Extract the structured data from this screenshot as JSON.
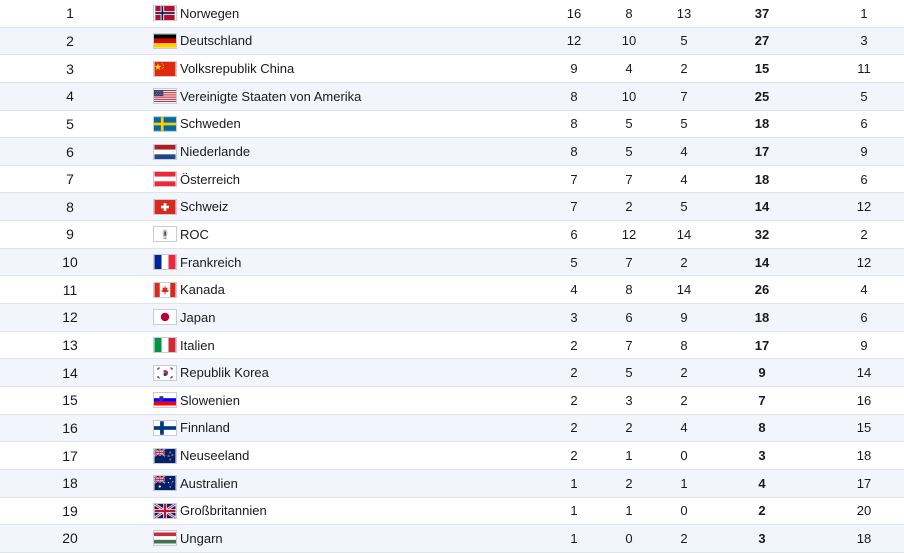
{
  "medal_table": {
    "rows": [
      {
        "rank": "1",
        "flag_icon": "norway-flag-icon",
        "country": "Norwegen",
        "gold": "16",
        "silver": "8",
        "bronze": "13",
        "total": "37",
        "rank_by_total": "1"
      },
      {
        "rank": "2",
        "flag_icon": "germany-flag-icon",
        "country": "Deutschland",
        "gold": "12",
        "silver": "10",
        "bronze": "5",
        "total": "27",
        "rank_by_total": "3"
      },
      {
        "rank": "3",
        "flag_icon": "china-flag-icon",
        "country": "Volksrepublik China",
        "gold": "9",
        "silver": "4",
        "bronze": "2",
        "total": "15",
        "rank_by_total": "11"
      },
      {
        "rank": "4",
        "flag_icon": "usa-flag-icon",
        "country": "Vereinigte Staaten von Amerika",
        "gold": "8",
        "silver": "10",
        "bronze": "7",
        "total": "25",
        "rank_by_total": "5"
      },
      {
        "rank": "5",
        "flag_icon": "sweden-flag-icon",
        "country": "Schweden",
        "gold": "8",
        "silver": "5",
        "bronze": "5",
        "total": "18",
        "rank_by_total": "6"
      },
      {
        "rank": "6",
        "flag_icon": "netherlands-flag-icon",
        "country": "Niederlande",
        "gold": "8",
        "silver": "5",
        "bronze": "4",
        "total": "17",
        "rank_by_total": "9"
      },
      {
        "rank": "7",
        "flag_icon": "austria-flag-icon",
        "country": "Österreich",
        "gold": "7",
        "silver": "7",
        "bronze": "4",
        "total": "18",
        "rank_by_total": "6"
      },
      {
        "rank": "8",
        "flag_icon": "switzerland-flag-icon",
        "country": "Schweiz",
        "gold": "7",
        "silver": "2",
        "bronze": "5",
        "total": "14",
        "rank_by_total": "12"
      },
      {
        "rank": "9",
        "flag_icon": "roc-flag-icon",
        "country": "ROC",
        "gold": "6",
        "silver": "12",
        "bronze": "14",
        "total": "32",
        "rank_by_total": "2"
      },
      {
        "rank": "10",
        "flag_icon": "france-flag-icon",
        "country": "Frankreich",
        "gold": "5",
        "silver": "7",
        "bronze": "2",
        "total": "14",
        "rank_by_total": "12"
      },
      {
        "rank": "11",
        "flag_icon": "canada-flag-icon",
        "country": "Kanada",
        "gold": "4",
        "silver": "8",
        "bronze": "14",
        "total": "26",
        "rank_by_total": "4"
      },
      {
        "rank": "12",
        "flag_icon": "japan-flag-icon",
        "country": "Japan",
        "gold": "3",
        "silver": "6",
        "bronze": "9",
        "total": "18",
        "rank_by_total": "6"
      },
      {
        "rank": "13",
        "flag_icon": "italy-flag-icon",
        "country": "Italien",
        "gold": "2",
        "silver": "7",
        "bronze": "8",
        "total": "17",
        "rank_by_total": "9"
      },
      {
        "rank": "14",
        "flag_icon": "korea-flag-icon",
        "country": "Republik Korea",
        "gold": "2",
        "silver": "5",
        "bronze": "2",
        "total": "9",
        "rank_by_total": "14"
      },
      {
        "rank": "15",
        "flag_icon": "slovenia-flag-icon",
        "country": "Slowenien",
        "gold": "2",
        "silver": "3",
        "bronze": "2",
        "total": "7",
        "rank_by_total": "16"
      },
      {
        "rank": "16",
        "flag_icon": "finland-flag-icon",
        "country": "Finnland",
        "gold": "2",
        "silver": "2",
        "bronze": "4",
        "total": "8",
        "rank_by_total": "15"
      },
      {
        "rank": "17",
        "flag_icon": "new-zealand-flag-icon",
        "country": "Neuseeland",
        "gold": "2",
        "silver": "1",
        "bronze": "0",
        "total": "3",
        "rank_by_total": "18"
      },
      {
        "rank": "18",
        "flag_icon": "australia-flag-icon",
        "country": "Australien",
        "gold": "1",
        "silver": "2",
        "bronze": "1",
        "total": "4",
        "rank_by_total": "17"
      },
      {
        "rank": "19",
        "flag_icon": "uk-flag-icon",
        "country": "Großbritannien",
        "gold": "1",
        "silver": "1",
        "bronze": "0",
        "total": "2",
        "rank_by_total": "20"
      },
      {
        "rank": "20",
        "flag_icon": "hungary-flag-icon",
        "country": "Ungarn",
        "gold": "1",
        "silver": "0",
        "bronze": "2",
        "total": "3",
        "rank_by_total": "18"
      }
    ]
  },
  "colors": {
    "row_alt_background": "#f2f6fc",
    "row_border": "#dfe3ea",
    "text": "#1a1a1a"
  }
}
